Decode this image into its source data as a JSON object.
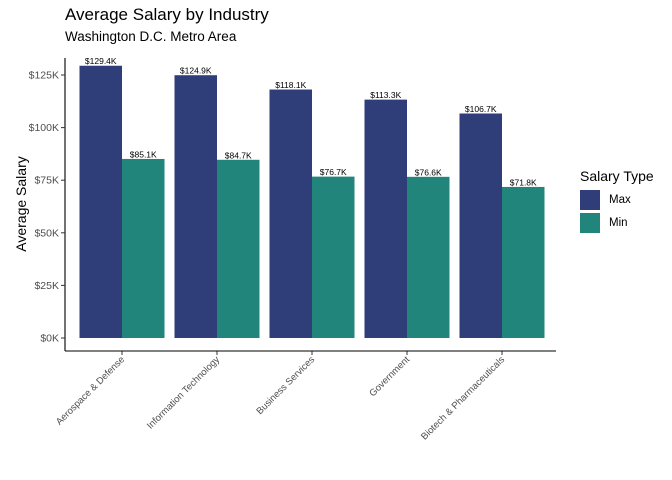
{
  "chart_data": {
    "type": "bar",
    "title": "Average Salary by Industry",
    "subtitle": "Washington D.C. Metro Area",
    "xlabel": "",
    "ylabel": "Average Salary",
    "categories": [
      "Aerospace & Defense",
      "Information Technology",
      "Business Services",
      "Government",
      "Biotech & Pharmaceuticals"
    ],
    "series": [
      {
        "name": "Max",
        "color": "#2f3e78",
        "values": [
          129400,
          124900,
          118100,
          113300,
          106700
        ],
        "labels": [
          "$129.4K",
          "$124.9K",
          "$118.1K",
          "$113.3K",
          "$106.7K"
        ]
      },
      {
        "name": "Min",
        "color": "#21857c",
        "values": [
          85100,
          84700,
          76700,
          76600,
          71800
        ],
        "labels": [
          "$85.1K",
          "$84.7K",
          "$76.7K",
          "$76.6K",
          "$71.8K"
        ]
      }
    ],
    "ylim": [
      0,
      135000
    ],
    "yticks": [
      0,
      25000,
      50000,
      75000,
      100000,
      125000
    ],
    "ytick_labels": [
      "$0K",
      "$25K",
      "$50K",
      "$75K",
      "$100K",
      "$125K"
    ],
    "legend_title": "Salary Type",
    "legend_position": "right",
    "grid": false
  }
}
